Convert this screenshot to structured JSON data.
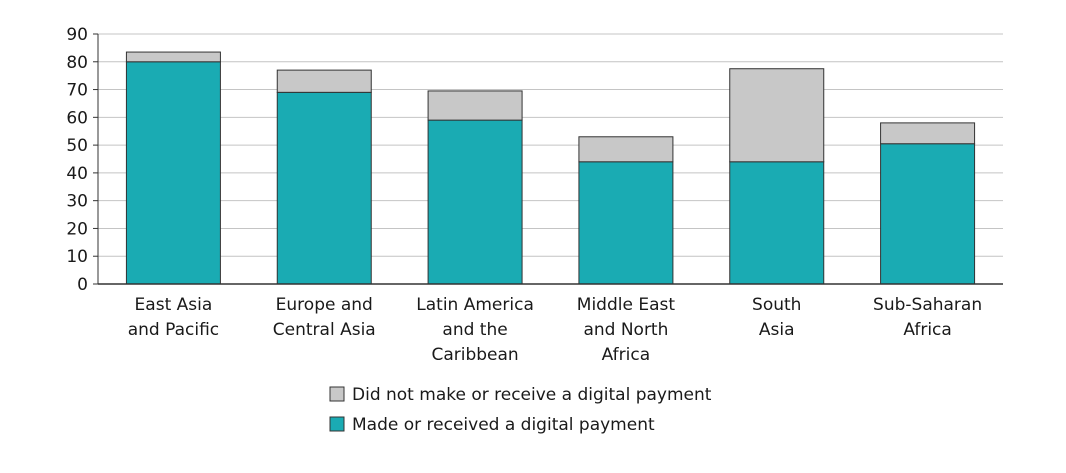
{
  "chart_data": {
    "type": "bar",
    "stacked": true,
    "title": "",
    "xlabel": "",
    "ylabel": "",
    "ylim": [
      0,
      90
    ],
    "yticks": [
      0,
      10,
      20,
      30,
      40,
      50,
      60,
      70,
      80,
      90
    ],
    "grid": true,
    "legend_position": "bottom-center",
    "categories": [
      [
        "East Asia",
        "and Pacific"
      ],
      [
        "Europe and",
        "Central Asia"
      ],
      [
        "Latin America",
        "and the",
        "Caribbean"
      ],
      [
        "Middle East",
        "and North",
        "Africa"
      ],
      [
        "South",
        "Asia"
      ],
      [
        "Sub-Saharan",
        "Africa"
      ]
    ],
    "series": [
      {
        "name": "Made or received a digital payment",
        "color": "#1aabb3",
        "values": [
          80,
          69,
          59,
          44,
          44,
          50.5
        ]
      },
      {
        "name": "Did not make or receive a digital payment",
        "color": "#c8c8c8",
        "values": [
          3.5,
          8,
          10.5,
          9,
          33.5,
          7.5
        ]
      }
    ],
    "legend_order": [
      1,
      0
    ]
  }
}
